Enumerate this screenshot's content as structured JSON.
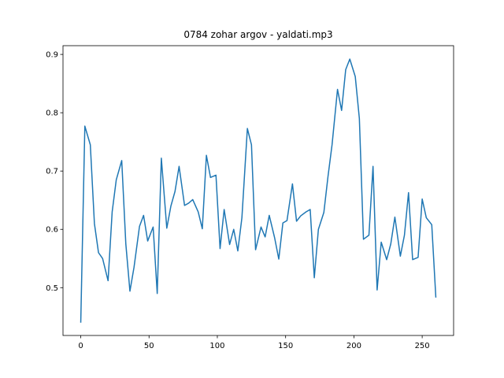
{
  "chart_data": {
    "type": "line",
    "title": "0784 zohar argov - yaldati.mp3",
    "x": [
      0,
      3,
      7,
      10,
      13,
      16,
      20,
      23,
      26,
      30,
      33,
      36,
      39,
      43,
      46,
      49,
      53,
      56,
      59,
      63,
      66,
      69,
      72,
      76,
      79,
      82,
      86,
      89,
      92,
      95,
      99,
      102,
      105,
      109,
      112,
      115,
      118,
      122,
      125,
      128,
      132,
      135,
      138,
      142,
      145,
      148,
      151,
      155,
      158,
      161,
      165,
      168,
      171,
      174,
      178,
      181,
      184,
      188,
      191,
      194,
      197,
      201,
      204,
      207,
      211,
      214,
      217,
      220,
      224,
      227,
      230,
      234,
      237,
      240,
      243,
      247,
      250,
      253,
      257,
      260
    ],
    "series": [
      {
        "color": "#1f77b4",
        "values": [
          0.44,
          0.777,
          0.745,
          0.61,
          0.56,
          0.55,
          0.512,
          0.63,
          0.685,
          0.718,
          0.575,
          0.494,
          0.535,
          0.605,
          0.624,
          0.58,
          0.604,
          0.49,
          0.722,
          0.602,
          0.64,
          0.665,
          0.708,
          0.641,
          0.645,
          0.651,
          0.63,
          0.601,
          0.727,
          0.689,
          0.693,
          0.567,
          0.634,
          0.574,
          0.6,
          0.563,
          0.62,
          0.773,
          0.745,
          0.565,
          0.604,
          0.587,
          0.624,
          0.585,
          0.549,
          0.611,
          0.615,
          0.678,
          0.614,
          0.623,
          0.63,
          0.634,
          0.517,
          0.6,
          0.629,
          0.69,
          0.745,
          0.84,
          0.804,
          0.874,
          0.892,
          0.862,
          0.79,
          0.583,
          0.59,
          0.708,
          0.496,
          0.578,
          0.548,
          0.575,
          0.621,
          0.554,
          0.59,
          0.663,
          0.548,
          0.552,
          0.652,
          0.62,
          0.608,
          0.483
        ]
      }
    ],
    "xlim": [
      -13,
      273
    ],
    "ylim": [
      0.418,
      0.915
    ],
    "xticks": [
      0,
      50,
      100,
      150,
      200,
      250
    ],
    "yticks": [
      0.5,
      0.6,
      0.7,
      0.8,
      0.9
    ]
  }
}
